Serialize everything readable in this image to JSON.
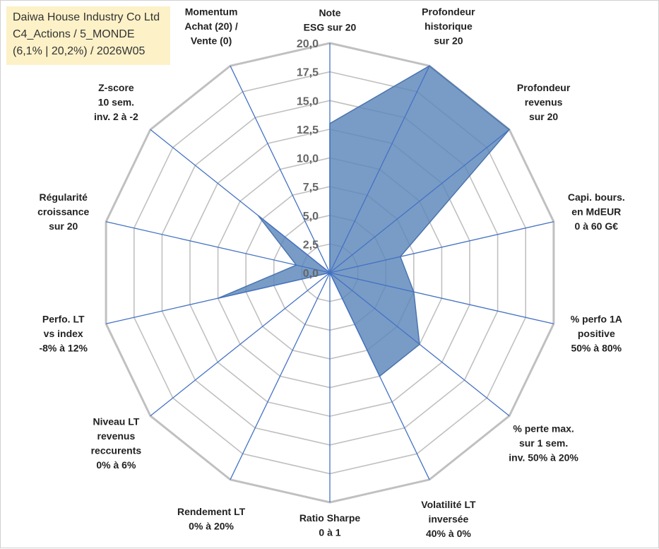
{
  "header": {
    "lines": [
      "Daiwa House Industry Co Ltd",
      "C4_Actions / 5_MONDE",
      "(6,1% | 20,2%) / 2026W05"
    ]
  },
  "colors": {
    "grid": "#c0c0c0",
    "spoke": "#4472c4",
    "fill": "#5b86b9",
    "fill_stroke": "#4a75b0",
    "title_bg": "#fdf1c8"
  },
  "chart_data": {
    "type": "radar",
    "rmin": 0,
    "rmax": 20,
    "ticks": [
      "0,0",
      "2,5",
      "5,0",
      "7,5",
      "10,0",
      "12,5",
      "15,0",
      "17,5",
      "20,0"
    ],
    "grid": true,
    "axes": [
      [
        "Note",
        "ESG sur 20"
      ],
      [
        "Profondeur",
        "historique",
        "sur 20"
      ],
      [
        "Profondeur",
        "revenus",
        "sur 20"
      ],
      [
        "Capi. bours.",
        "en MdEUR",
        "0 à 60 G€"
      ],
      [
        "% perfo 1A",
        "positive",
        "50% à 80%"
      ],
      [
        "% perte max.",
        "sur 1 sem.",
        "inv. 50% à 20%"
      ],
      [
        "Volatilité LT",
        "inversée",
        "40% à 0%"
      ],
      [
        "Ratio Sharpe",
        "0 à 1"
      ],
      [
        "Rendement LT",
        "0% à 20%"
      ],
      [
        "Niveau LT",
        "revenus",
        "reccurents",
        "0% à 6%"
      ],
      [
        "Perfo. LT",
        "vs index",
        "-8% à 12%"
      ],
      [
        "Régularité",
        "croissance",
        "sur 20"
      ],
      [
        "Z-score",
        "10 sem.",
        "inv. 2 à -2"
      ],
      [
        "Momentum",
        "Achat (20) /",
        "Vente (0)"
      ]
    ],
    "series": [
      {
        "values": [
          13.0,
          20.0,
          20.0,
          6.3,
          7.5,
          10.0,
          10.0,
          0.0,
          0.0,
          0.0,
          10.0,
          3.0,
          8.0,
          0.0
        ]
      }
    ]
  }
}
